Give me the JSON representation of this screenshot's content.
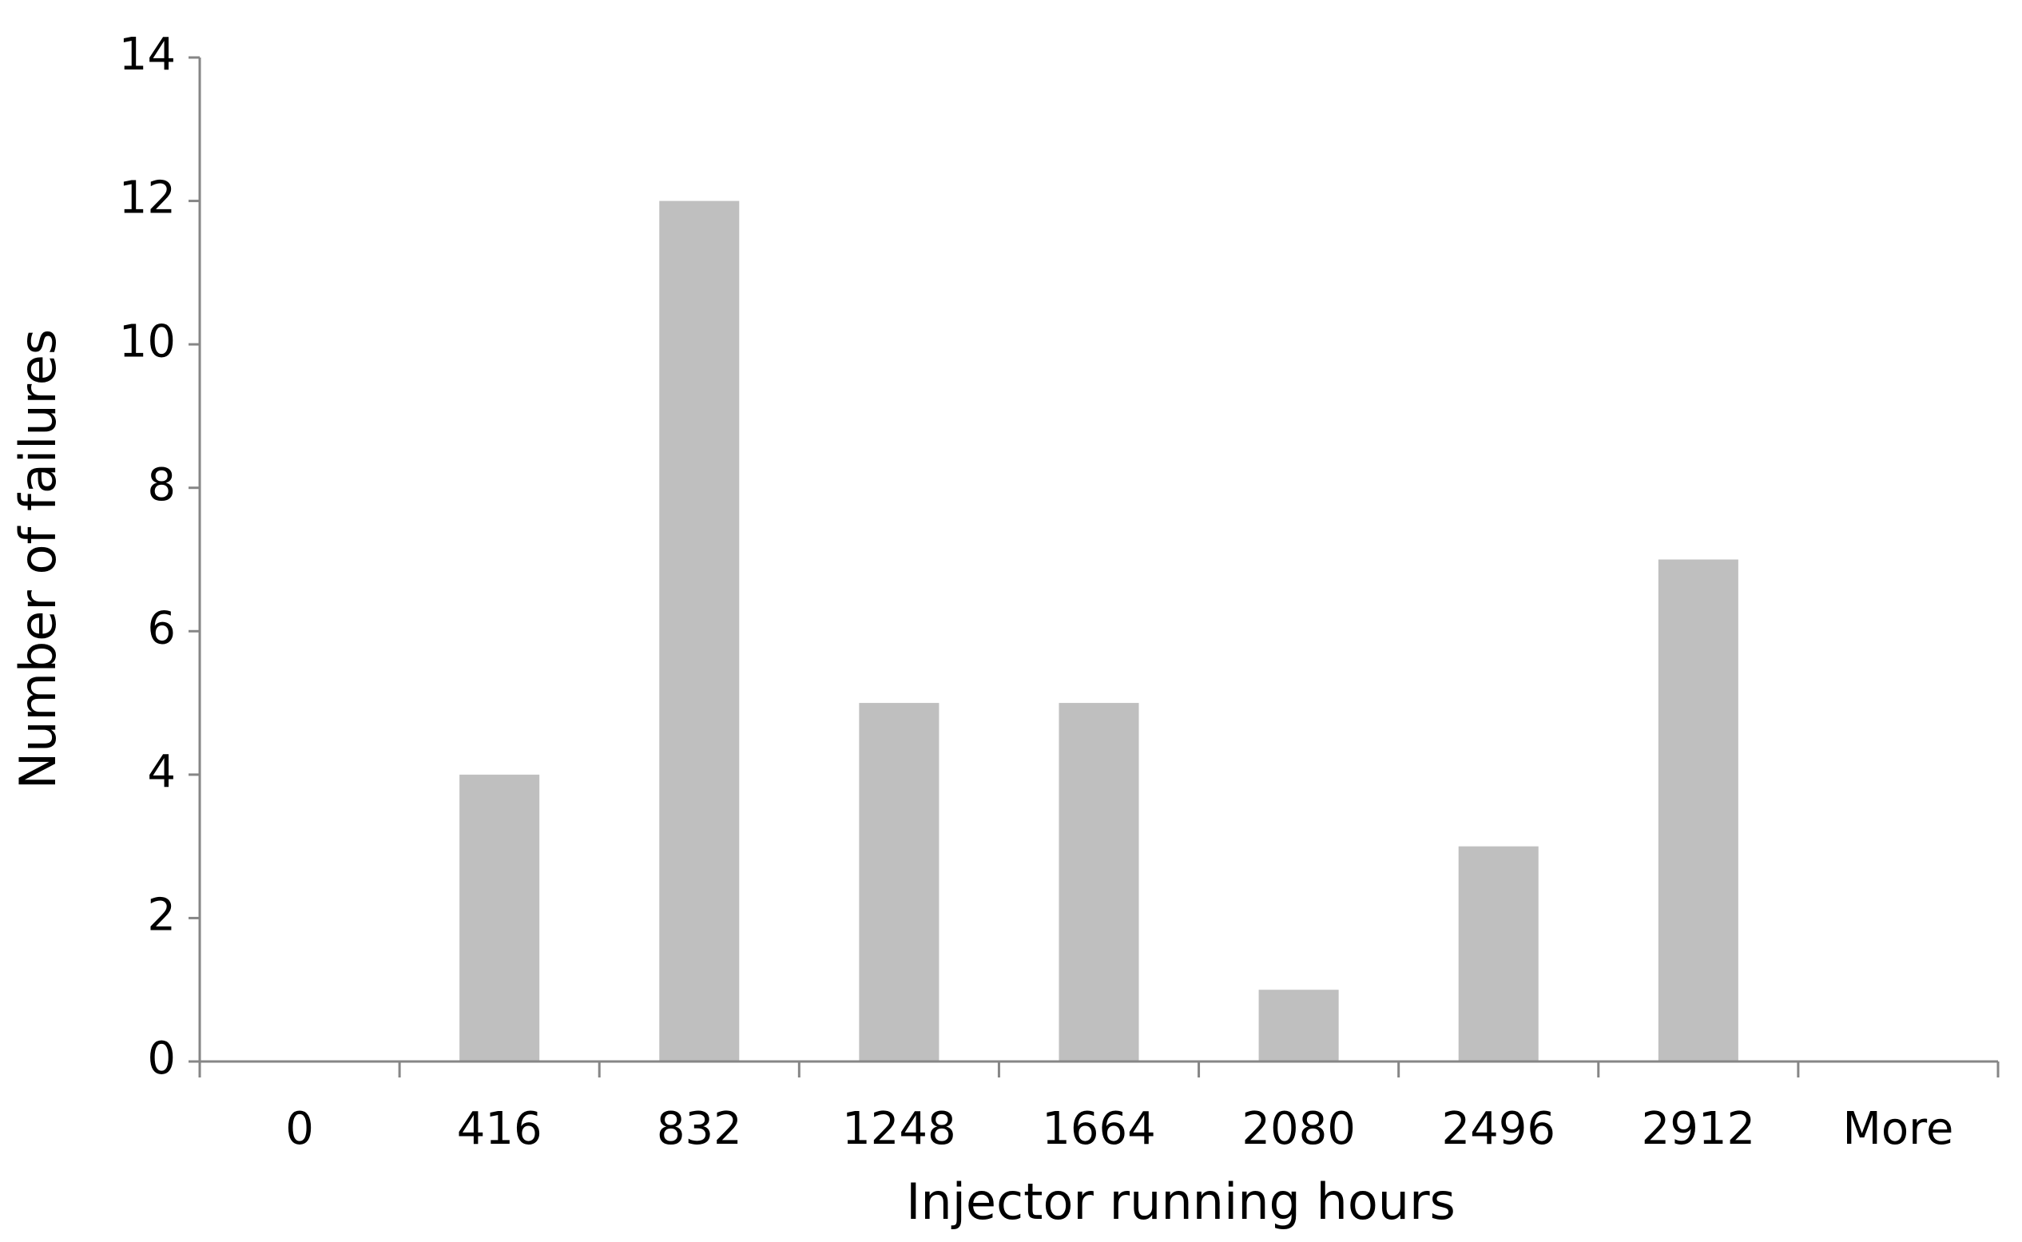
{
  "chart_data": {
    "type": "bar",
    "x_label": "Injector running hours",
    "y_label": "Number of failures",
    "categories": [
      "0",
      "416",
      "832",
      "1248",
      "1664",
      "2080",
      "2496",
      "2912",
      "More"
    ],
    "values": [
      0,
      4,
      12,
      5,
      5,
      1,
      3,
      7,
      0
    ],
    "color": "#bfbfbf",
    "ylim": [
      0,
      14
    ],
    "yticks": [
      0,
      2,
      4,
      6,
      8,
      10,
      12,
      14
    ],
    "grid": false
  }
}
